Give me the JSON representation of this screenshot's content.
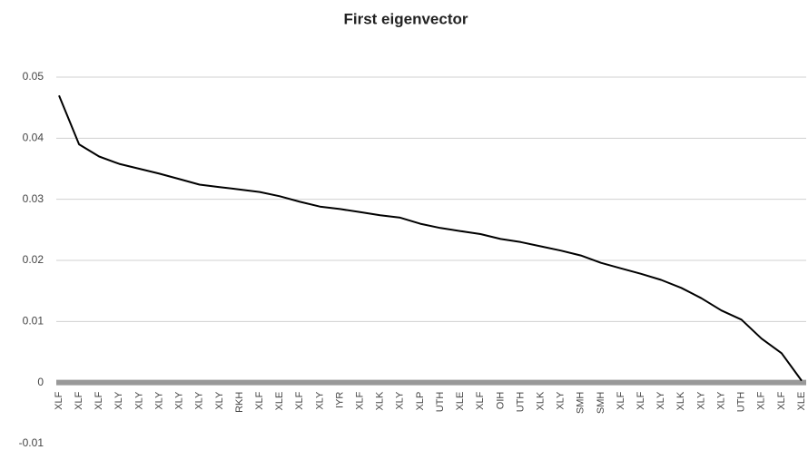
{
  "chart_data": {
    "type": "line",
    "title": "First eigenvector",
    "categories": [
      "XLF",
      "XLF",
      "XLF",
      "XLY",
      "XLY",
      "XLY",
      "XLY",
      "XLY",
      "XLY",
      "RKH",
      "XLF",
      "XLE",
      "XLF",
      "XLY",
      "IYR",
      "XLF",
      "XLK",
      "XLY",
      "XLP",
      "UTH",
      "XLE",
      "XLF",
      "OIH",
      "UTH",
      "XLK",
      "XLY",
      "SMH",
      "SMH",
      "XLF",
      "XLF",
      "XLY",
      "XLK",
      "XLY",
      "XLY",
      "UTH",
      "XLF",
      "XLF",
      "XLE"
    ],
    "values": [
      0.047,
      0.039,
      0.037,
      0.0358,
      0.035,
      0.0342,
      0.0333,
      0.0324,
      0.032,
      0.0316,
      0.0312,
      0.0305,
      0.0296,
      0.0288,
      0.0284,
      0.0279,
      0.0274,
      0.027,
      0.026,
      0.0253,
      0.0248,
      0.0243,
      0.0235,
      0.023,
      0.0223,
      0.0216,
      0.0208,
      0.0196,
      0.0187,
      0.0178,
      0.0168,
      0.0155,
      0.0138,
      0.0118,
      0.0103,
      0.0072,
      0.0048,
      0.0003
    ],
    "color": "#000000",
    "ylim": [
      -0.01,
      0.05
    ],
    "yticks": [
      -0.01,
      0,
      0.01,
      0.02,
      0.03,
      0.04,
      0.05
    ],
    "grid": true
  }
}
